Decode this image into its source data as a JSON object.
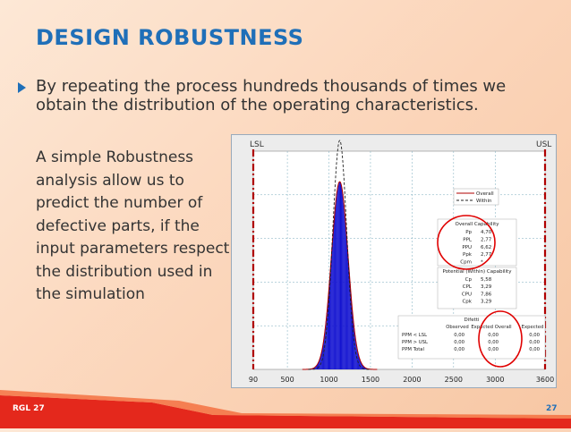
{
  "slide": {
    "title": "DESIGN ROBUSTNESS",
    "paragraph1": "By repeating the process hundreds thousands of times we obtain the distribution of the operating characteristics.",
    "paragraph2": "A simple Robustness analysis allow us to predict the number of defective parts, if the input parameters respect the distribution used in the simulation",
    "footer_left": "RGL 27",
    "page_number": "27"
  },
  "colors": {
    "title": "#1f6fb8",
    "spec_lines": "#b00000",
    "bars": "#1010d0",
    "highlight": "#e00000"
  },
  "chart_data": {
    "type": "bar",
    "spec_limits": {
      "lsl_label": "LSL",
      "usl_label": "USL",
      "lsl": 90,
      "usl": 3600
    },
    "x_ticks": [
      "90",
      "500",
      "1000",
      "1500",
      "2000",
      "2500",
      "3000",
      "3600"
    ],
    "x_tick_values": [
      90,
      500,
      1000,
      1500,
      2000,
      2500,
      3000,
      3600
    ],
    "xlim": [
      90,
      3600
    ],
    "histogram": {
      "center": 1130,
      "sigma": 100,
      "peak_relative": 1.0
    },
    "legend": {
      "overall": "Overall",
      "within": "Within"
    },
    "overall_capability": {
      "title": "Overall Capability",
      "rows": [
        {
          "label": "Pp",
          "value": "4,70"
        },
        {
          "label": "PPL",
          "value": "2,77"
        },
        {
          "label": "PPU",
          "value": "6,62"
        },
        {
          "label": "Ppk",
          "value": "2,77"
        },
        {
          "label": "Cpm",
          "value": "*"
        }
      ]
    },
    "potential_capability": {
      "title": "Potential (Within) Capability",
      "rows": [
        {
          "label": "Cp",
          "value": "5,58"
        },
        {
          "label": "CPL",
          "value": "3,29"
        },
        {
          "label": "CPU",
          "value": "7,86"
        },
        {
          "label": "Cpk",
          "value": "3,29"
        }
      ]
    },
    "defects": {
      "title": "Difetti",
      "headers": [
        "Observed",
        "Expected Overall",
        "Expected"
      ],
      "rows": [
        {
          "label": "PPM < LSL",
          "values": [
            "0,00",
            "0,00",
            "0,00"
          ]
        },
        {
          "label": "PPM > USL",
          "values": [
            "0,00",
            "0,00",
            "0,00"
          ]
        },
        {
          "label": "PPM Total",
          "values": [
            "0,00",
            "0,00",
            "0,00"
          ]
        }
      ]
    }
  }
}
